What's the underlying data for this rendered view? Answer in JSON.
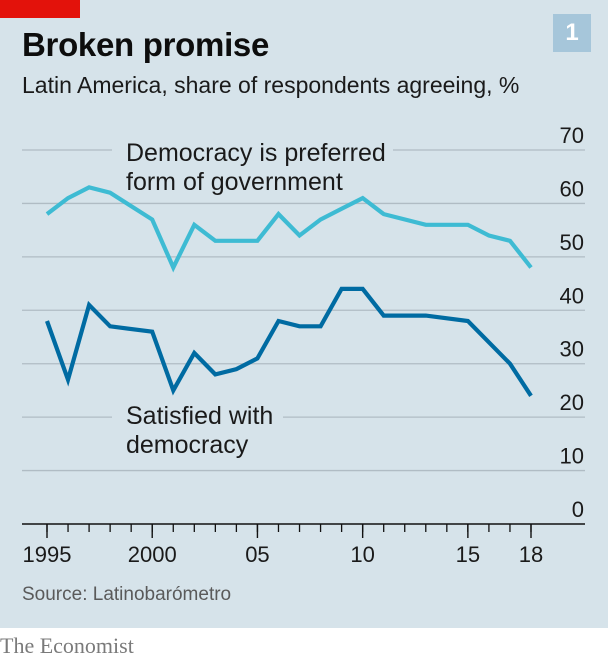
{
  "header": {
    "title": "Broken promise",
    "subtitle": "Latin America, share of respondents agreeing, %",
    "chart_number": "1"
  },
  "footer": {
    "source": "Source: Latinobarómetro",
    "brand": "The Economist"
  },
  "colors": {
    "background": "#d6e3ea",
    "accent_red": "#e3120b",
    "preferred_line": "#3ebbd3",
    "satisfied_line": "#006ba2"
  },
  "chart_data": {
    "type": "line",
    "title": "Broken promise",
    "subtitle": "Latin America, share of respondents agreeing, %",
    "xlim": [
      1995,
      2018
    ],
    "ylim": [
      0,
      70
    ],
    "grid": true,
    "y_axis_side": "right",
    "x_ticks": [
      {
        "value": 1995,
        "label": "1995"
      },
      {
        "value": 2000,
        "label": "2000"
      },
      {
        "value": 2005,
        "label": "05"
      },
      {
        "value": 2010,
        "label": "10"
      },
      {
        "value": 2015,
        "label": "15"
      },
      {
        "value": 2018,
        "label": "18"
      }
    ],
    "y_ticks": [
      0,
      10,
      20,
      30,
      40,
      50,
      60,
      70
    ],
    "series": [
      {
        "name": "Democracy is preferred form of government",
        "label_lines": [
          "Democracy is preferred",
          "form of government"
        ],
        "color": "#3ebbd3",
        "x": [
          1995,
          1996,
          1997,
          1998,
          2000,
          2001,
          2002,
          2003,
          2004,
          2005,
          2006,
          2007,
          2008,
          2009,
          2010,
          2011,
          2013,
          2015,
          2016,
          2017,
          2018
        ],
        "y": [
          58,
          61,
          63,
          62,
          57,
          48,
          56,
          53,
          53,
          53,
          58,
          54,
          57,
          59,
          61,
          58,
          56,
          56,
          54,
          53,
          48
        ]
      },
      {
        "name": "Satisfied with democracy",
        "label_lines": [
          "Satisfied with",
          "democracy"
        ],
        "color": "#006ba2",
        "x": [
          1995,
          1996,
          1997,
          1998,
          2000,
          2001,
          2002,
          2003,
          2004,
          2005,
          2006,
          2007,
          2008,
          2009,
          2010,
          2011,
          2013,
          2015,
          2016,
          2017,
          2018
        ],
        "y": [
          38,
          27,
          41,
          37,
          36,
          25,
          32,
          28,
          29,
          31,
          38,
          37,
          37,
          44,
          44,
          39,
          39,
          38,
          34,
          30,
          24
        ]
      }
    ]
  }
}
